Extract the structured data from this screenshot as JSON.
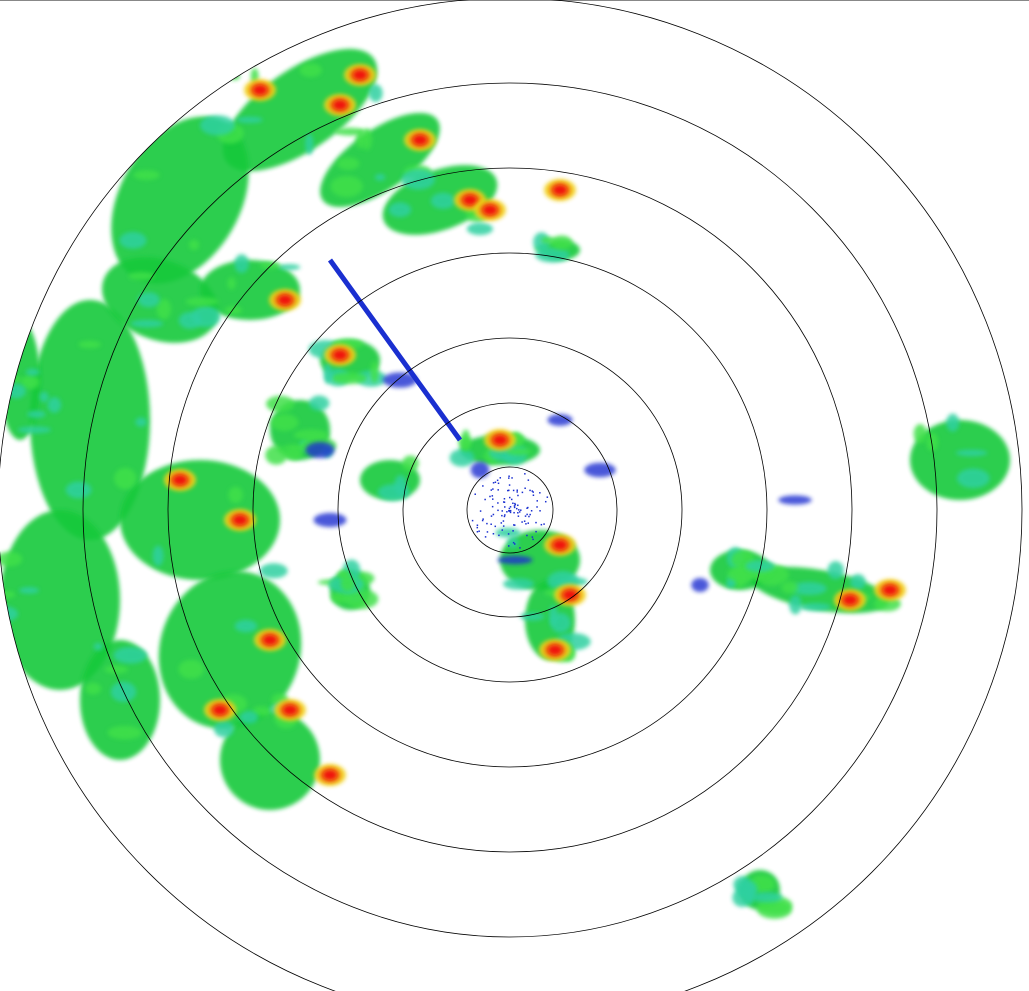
{
  "radar": {
    "palette": {
      "weak": "#1a2fd0",
      "light": "#19c93b",
      "moderate": "#3fe04a",
      "teal": "#2fd0a0",
      "heavy": "#f2d21a",
      "intense": "#f07a10",
      "extreme": "#f01010"
    },
    "ring_color": "#000000",
    "range_ring_count": 7
  }
}
